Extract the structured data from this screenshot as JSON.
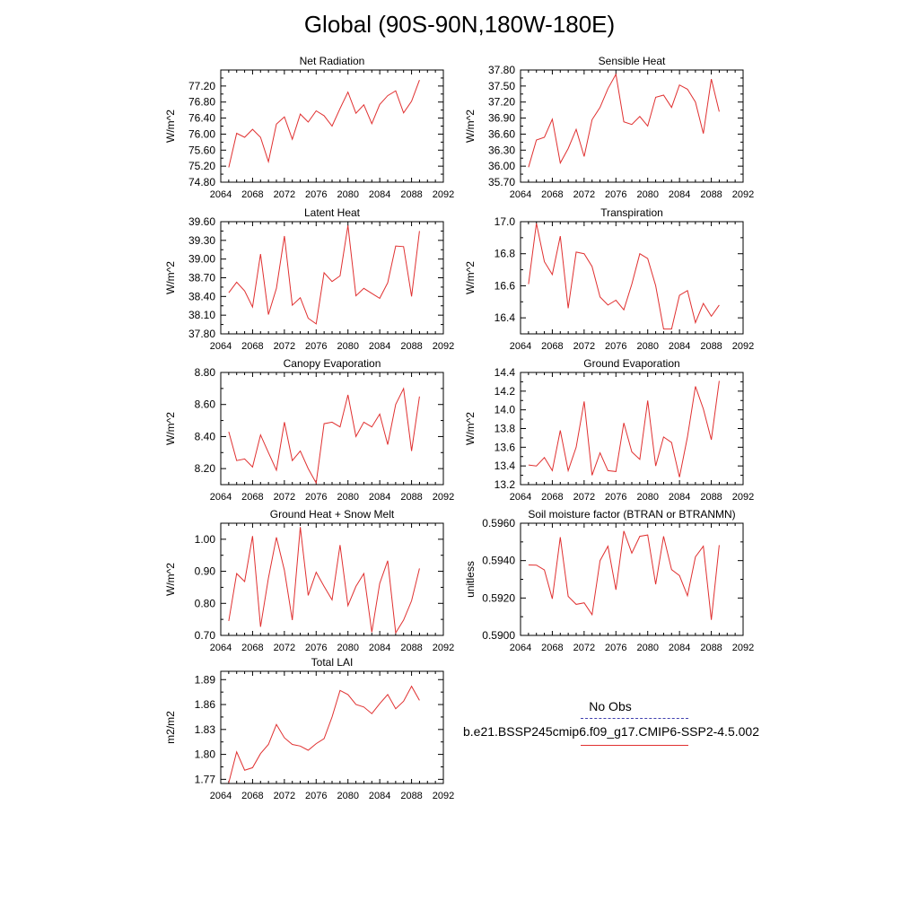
{
  "title": "Global (90S-90N,180W-180E)",
  "legend": {
    "obs_label": "No Obs",
    "case_label": "b.e21.BSSP245cmip6.f09_g17.CMIP6-SSP2-4.5.002",
    "obs_color": "#4040b0",
    "case_color": "#e03030"
  },
  "chart_data": [
    {
      "type": "line",
      "title": "Net Radiation",
      "ylabel": "W/m^2",
      "xlim": [
        2064,
        2092
      ],
      "ylim": [
        74.8,
        77.6
      ],
      "yticks": [
        74.8,
        75.2,
        75.6,
        76.0,
        76.4,
        76.8,
        77.2
      ],
      "ytick_labels": [
        "74.80",
        "75.20",
        "75.60",
        "76.00",
        "76.40",
        "76.80",
        "77.20"
      ],
      "xticks": [
        2064,
        2068,
        2072,
        2076,
        2080,
        2084,
        2088,
        2092
      ],
      "x": [
        2065,
        2066,
        2067,
        2068,
        2069,
        2070,
        2071,
        2072,
        2073,
        2074,
        2075,
        2076,
        2077,
        2078,
        2079,
        2080,
        2081,
        2082,
        2083,
        2084,
        2085,
        2086,
        2087,
        2088,
        2089
      ],
      "series": [
        {
          "values": [
            75.17,
            76.02,
            75.92,
            76.12,
            75.92,
            75.31,
            76.25,
            76.43,
            75.87,
            76.5,
            76.3,
            76.58,
            76.46,
            76.2,
            76.64,
            77.05,
            76.52,
            76.73,
            76.26,
            76.74,
            76.96,
            77.08,
            76.53,
            76.82,
            77.35
          ]
        }
      ]
    },
    {
      "type": "line",
      "title": "Sensible Heat",
      "ylabel": "W/m^2",
      "xlim": [
        2064,
        2092
      ],
      "ylim": [
        35.7,
        37.8
      ],
      "yticks": [
        35.7,
        36.0,
        36.3,
        36.6,
        36.9,
        37.2,
        37.5,
        37.8
      ],
      "ytick_labels": [
        "35.70",
        "36.00",
        "36.30",
        "36.60",
        "36.90",
        "37.20",
        "37.50",
        "37.80"
      ],
      "xticks": [
        2064,
        2068,
        2072,
        2076,
        2080,
        2084,
        2088,
        2092
      ],
      "x": [
        2065,
        2066,
        2067,
        2068,
        2069,
        2070,
        2071,
        2072,
        2073,
        2074,
        2075,
        2076,
        2077,
        2078,
        2079,
        2080,
        2081,
        2082,
        2083,
        2084,
        2085,
        2086,
        2087,
        2088,
        2089
      ],
      "series": [
        {
          "values": [
            35.98,
            36.49,
            36.54,
            36.88,
            36.06,
            36.33,
            36.69,
            36.18,
            36.87,
            37.1,
            37.45,
            37.72,
            36.83,
            36.78,
            36.93,
            36.75,
            37.29,
            37.33,
            37.1,
            37.52,
            37.44,
            37.2,
            36.61,
            37.63,
            37.02
          ]
        }
      ]
    },
    {
      "type": "line",
      "title": "Latent Heat",
      "ylabel": "W/m^2",
      "xlim": [
        2064,
        2092
      ],
      "ylim": [
        37.8,
        39.6
      ],
      "yticks": [
        37.8,
        38.1,
        38.4,
        38.7,
        39.0,
        39.3,
        39.6
      ],
      "ytick_labels": [
        "37.80",
        "38.10",
        "38.40",
        "38.70",
        "39.00",
        "39.30",
        "39.60"
      ],
      "xticks": [
        2064,
        2068,
        2072,
        2076,
        2080,
        2084,
        2088,
        2092
      ],
      "x": [
        2065,
        2066,
        2067,
        2068,
        2069,
        2070,
        2071,
        2072,
        2073,
        2074,
        2075,
        2076,
        2077,
        2078,
        2079,
        2080,
        2081,
        2082,
        2083,
        2084,
        2085,
        2086,
        2087,
        2088,
        2089
      ],
      "series": [
        {
          "values": [
            38.46,
            38.63,
            38.49,
            38.23,
            39.08,
            38.11,
            38.53,
            39.37,
            38.26,
            38.38,
            38.05,
            37.96,
            38.78,
            38.64,
            38.73,
            39.54,
            38.41,
            38.53,
            38.45,
            38.37,
            38.62,
            39.21,
            39.2,
            38.4,
            39.45
          ]
        }
      ]
    },
    {
      "type": "line",
      "title": "Transpiration",
      "ylabel": "W/m^2",
      "xlim": [
        2064,
        2092
      ],
      "ylim": [
        16.3,
        17.0
      ],
      "yticks": [
        16.4,
        16.6,
        16.8,
        17.0
      ],
      "ytick_labels": [
        "16.4",
        "16.6",
        "16.8",
        "17.0"
      ],
      "xticks": [
        2064,
        2068,
        2072,
        2076,
        2080,
        2084,
        2088,
        2092
      ],
      "x": [
        2065,
        2066,
        2067,
        2068,
        2069,
        2070,
        2071,
        2072,
        2073,
        2074,
        2075,
        2076,
        2077,
        2078,
        2079,
        2080,
        2081,
        2082,
        2083,
        2084,
        2085,
        2086,
        2087,
        2088,
        2089
      ],
      "series": [
        {
          "values": [
            16.61,
            16.99,
            16.75,
            16.67,
            16.91,
            16.46,
            16.81,
            16.8,
            16.72,
            16.53,
            16.48,
            16.51,
            16.45,
            16.61,
            16.8,
            16.77,
            16.6,
            16.33,
            16.33,
            16.54,
            16.57,
            16.37,
            16.49,
            16.41,
            16.48
          ]
        }
      ]
    },
    {
      "type": "line",
      "title": "Canopy Evaporation",
      "ylabel": "W/m^2",
      "xlim": [
        2064,
        2092
      ],
      "ylim": [
        8.1,
        8.8
      ],
      "yticks": [
        8.2,
        8.4,
        8.6,
        8.8
      ],
      "ytick_labels": [
        "8.20",
        "8.40",
        "8.60",
        "8.80"
      ],
      "xticks": [
        2064,
        2068,
        2072,
        2076,
        2080,
        2084,
        2088,
        2092
      ],
      "x": [
        2065,
        2066,
        2067,
        2068,
        2069,
        2070,
        2071,
        2072,
        2073,
        2074,
        2075,
        2076,
        2077,
        2078,
        2079,
        2080,
        2081,
        2082,
        2083,
        2084,
        2085,
        2086,
        2087,
        2088,
        2089
      ],
      "series": [
        {
          "values": [
            8.43,
            8.25,
            8.26,
            8.21,
            8.41,
            8.3,
            8.19,
            8.49,
            8.25,
            8.31,
            8.2,
            8.11,
            8.48,
            8.49,
            8.46,
            8.66,
            8.4,
            8.49,
            8.46,
            8.54,
            8.35,
            8.6,
            8.7,
            8.31,
            8.65
          ]
        }
      ]
    },
    {
      "type": "line",
      "title": "Ground Evaporation",
      "ylabel": "W/m^2",
      "xlim": [
        2064,
        2092
      ],
      "ylim": [
        13.2,
        14.4
      ],
      "yticks": [
        13.2,
        13.4,
        13.6,
        13.8,
        14.0,
        14.2,
        14.4
      ],
      "ytick_labels": [
        "13.2",
        "13.4",
        "13.6",
        "13.8",
        "14.0",
        "14.2",
        "14.4"
      ],
      "xticks": [
        2064,
        2068,
        2072,
        2076,
        2080,
        2084,
        2088,
        2092
      ],
      "x": [
        2065,
        2066,
        2067,
        2068,
        2069,
        2070,
        2071,
        2072,
        2073,
        2074,
        2075,
        2076,
        2077,
        2078,
        2079,
        2080,
        2081,
        2082,
        2083,
        2084,
        2085,
        2086,
        2087,
        2088,
        2089
      ],
      "series": [
        {
          "values": [
            13.41,
            13.4,
            13.49,
            13.35,
            13.78,
            13.35,
            13.6,
            14.09,
            13.3,
            13.54,
            13.35,
            13.34,
            13.86,
            13.55,
            13.47,
            14.1,
            13.4,
            13.71,
            13.65,
            13.28,
            13.71,
            14.25,
            14.01,
            13.68,
            14.31
          ]
        }
      ]
    },
    {
      "type": "line",
      "title": "Ground Heat + Snow Melt",
      "ylabel": "W/m^2",
      "xlim": [
        2064,
        2092
      ],
      "ylim": [
        0.7,
        1.05
      ],
      "yticks": [
        0.7,
        0.8,
        0.9,
        1.0
      ],
      "ytick_labels": [
        "0.70",
        "0.80",
        "0.90",
        "1.00"
      ],
      "xticks": [
        2064,
        2068,
        2072,
        2076,
        2080,
        2084,
        2088,
        2092
      ],
      "x": [
        2065,
        2066,
        2067,
        2068,
        2069,
        2070,
        2071,
        2072,
        2073,
        2074,
        2075,
        2076,
        2077,
        2078,
        2079,
        2080,
        2081,
        2082,
        2083,
        2084,
        2085,
        2086,
        2087,
        2088,
        2089
      ],
      "series": [
        {
          "values": [
            0.745,
            0.893,
            0.868,
            1.01,
            0.727,
            0.879,
            1.006,
            0.903,
            0.748,
            1.038,
            0.825,
            0.897,
            0.853,
            0.811,
            0.982,
            0.793,
            0.853,
            0.893,
            0.71,
            0.862,
            0.933,
            0.708,
            0.748,
            0.808,
            0.909
          ]
        }
      ]
    },
    {
      "type": "line",
      "title": "Soil moisture factor (BTRAN or BTRANMN)",
      "ylabel": "unitless",
      "xlim": [
        2064,
        2092
      ],
      "ylim": [
        0.59,
        0.596
      ],
      "yticks": [
        0.59,
        0.592,
        0.594,
        0.596
      ],
      "ytick_labels": [
        "0.5900",
        "0.5920",
        "0.5940",
        "0.5960"
      ],
      "xticks": [
        2064,
        2068,
        2072,
        2076,
        2080,
        2084,
        2088,
        2092
      ],
      "x": [
        2065,
        2066,
        2067,
        2068,
        2069,
        2070,
        2071,
        2072,
        2073,
        2074,
        2075,
        2076,
        2077,
        2078,
        2079,
        2080,
        2081,
        2082,
        2083,
        2084,
        2085,
        2086,
        2087,
        2088,
        2089
      ],
      "series": [
        {
          "values": [
            0.59377,
            0.59376,
            0.5935,
            0.59196,
            0.59525,
            0.59209,
            0.59166,
            0.59174,
            0.59111,
            0.594,
            0.59477,
            0.59244,
            0.59558,
            0.5944,
            0.5953,
            0.59537,
            0.59273,
            0.5953,
            0.59352,
            0.5932,
            0.59212,
            0.5942,
            0.59477,
            0.59083,
            0.59483
          ]
        }
      ]
    },
    {
      "type": "line",
      "title": "Total LAI",
      "ylabel": "m2/m2",
      "xlim": [
        2064,
        2092
      ],
      "ylim": [
        1.765,
        1.9
      ],
      "yticks": [
        1.77,
        1.8,
        1.83,
        1.86,
        1.89
      ],
      "ytick_labels": [
        "1.77",
        "1.80",
        "1.83",
        "1.86",
        "1.89"
      ],
      "xticks": [
        2064,
        2068,
        2072,
        2076,
        2080,
        2084,
        2088,
        2092
      ],
      "x": [
        2065,
        2066,
        2067,
        2068,
        2069,
        2070,
        2071,
        2072,
        2073,
        2074,
        2075,
        2076,
        2077,
        2078,
        2079,
        2080,
        2081,
        2082,
        2083,
        2084,
        2085,
        2086,
        2087,
        2088,
        2089
      ],
      "series": [
        {
          "values": [
            1.766,
            1.803,
            1.781,
            1.784,
            1.801,
            1.812,
            1.836,
            1.82,
            1.812,
            1.81,
            1.805,
            1.813,
            1.819,
            1.845,
            1.877,
            1.872,
            1.86,
            1.857,
            1.849,
            1.861,
            1.872,
            1.855,
            1.864,
            1.882,
            1.865
          ]
        }
      ]
    }
  ]
}
